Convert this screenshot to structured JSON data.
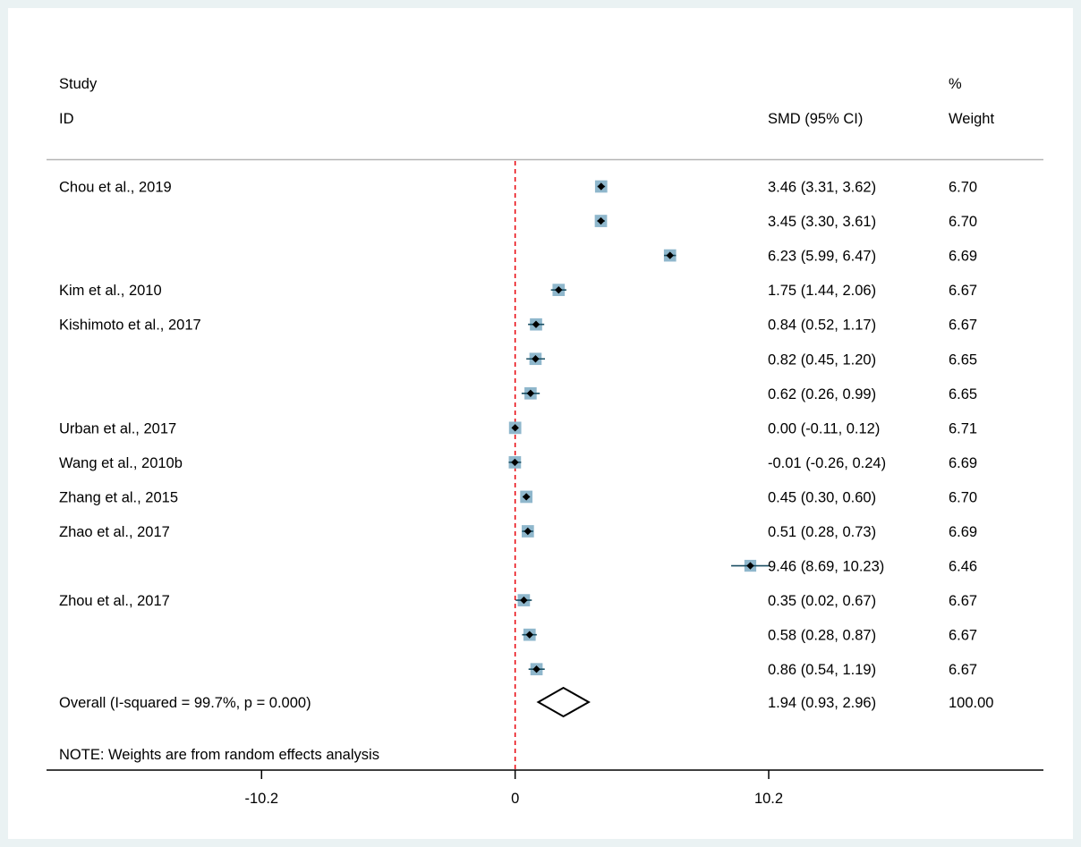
{
  "colors": {
    "outer_background": "#eaf2f3",
    "panel_background": "#ffffff",
    "null_line": "#e8000b",
    "ci_line": "#1a4f63",
    "weight_box": "#8fb7cc",
    "point": "#000000",
    "text": "#000000",
    "rule": "#b4b4b4",
    "axis": "#000000"
  },
  "headers": {
    "study_line1": "Study",
    "study_line2": "ID",
    "effect": "SMD (95% CI)",
    "weight_line1": "%",
    "weight_line2": "Weight"
  },
  "note": "NOTE: Weights are from random effects analysis",
  "chart_data": {
    "type": "forest",
    "effect_measure": "SMD",
    "null_value": 0,
    "xlim": [
      -18.85,
      21.25
    ],
    "x_ticks": [
      -10.2,
      0,
      10.2
    ],
    "x_tick_labels": [
      "-10.2",
      "0",
      "10.2"
    ],
    "grid": false,
    "legend": "none",
    "studies": [
      {
        "label": "Chou et al., 2019",
        "smd": 3.46,
        "lower": 3.31,
        "upper": 3.62,
        "weight": 6.7,
        "ci_text": "3.46 (3.31, 3.62)",
        "weight_text": "6.70"
      },
      {
        "label": "",
        "smd": 3.45,
        "lower": 3.3,
        "upper": 3.61,
        "weight": 6.7,
        "ci_text": "3.45 (3.30, 3.61)",
        "weight_text": "6.70"
      },
      {
        "label": "",
        "smd": 6.23,
        "lower": 5.99,
        "upper": 6.47,
        "weight": 6.69,
        "ci_text": "6.23 (5.99, 6.47)",
        "weight_text": "6.69"
      },
      {
        "label": "Kim et al., 2010",
        "smd": 1.75,
        "lower": 1.44,
        "upper": 2.06,
        "weight": 6.67,
        "ci_text": "1.75 (1.44, 2.06)",
        "weight_text": "6.67"
      },
      {
        "label": "Kishimoto et al., 2017",
        "smd": 0.84,
        "lower": 0.52,
        "upper": 1.17,
        "weight": 6.67,
        "ci_text": "0.84 (0.52, 1.17)",
        "weight_text": "6.67"
      },
      {
        "label": "",
        "smd": 0.82,
        "lower": 0.45,
        "upper": 1.2,
        "weight": 6.65,
        "ci_text": "0.82 (0.45, 1.20)",
        "weight_text": "6.65"
      },
      {
        "label": "",
        "smd": 0.62,
        "lower": 0.26,
        "upper": 0.99,
        "weight": 6.65,
        "ci_text": "0.62 (0.26, 0.99)",
        "weight_text": "6.65"
      },
      {
        "label": "Urban et al., 2017",
        "smd": 0.0,
        "lower": -0.11,
        "upper": 0.12,
        "weight": 6.71,
        "ci_text": "0.00 (-0.11, 0.12)",
        "weight_text": "6.71"
      },
      {
        "label": "Wang et al., 2010b",
        "smd": -0.01,
        "lower": -0.26,
        "upper": 0.24,
        "weight": 6.69,
        "ci_text": "-0.01 (-0.26, 0.24)",
        "weight_text": "6.69"
      },
      {
        "label": "Zhang et al., 2015",
        "smd": 0.45,
        "lower": 0.3,
        "upper": 0.6,
        "weight": 6.7,
        "ci_text": "0.45 (0.30, 0.60)",
        "weight_text": "6.70"
      },
      {
        "label": "Zhao et al., 2017",
        "smd": 0.51,
        "lower": 0.28,
        "upper": 0.73,
        "weight": 6.69,
        "ci_text": "0.51 (0.28, 0.73)",
        "weight_text": "6.69"
      },
      {
        "label": "",
        "smd": 9.46,
        "lower": 8.69,
        "upper": 10.23,
        "weight": 6.46,
        "ci_text": "9.46 (8.69, 10.23)",
        "weight_text": "6.46"
      },
      {
        "label": "Zhou et al., 2017",
        "smd": 0.35,
        "lower": 0.02,
        "upper": 0.67,
        "weight": 6.67,
        "ci_text": "0.35 (0.02, 0.67)",
        "weight_text": "6.67"
      },
      {
        "label": "",
        "smd": 0.58,
        "lower": 0.28,
        "upper": 0.87,
        "weight": 6.67,
        "ci_text": "0.58 (0.28, 0.87)",
        "weight_text": "6.67"
      },
      {
        "label": "",
        "smd": 0.86,
        "lower": 0.54,
        "upper": 1.19,
        "weight": 6.67,
        "ci_text": "0.86 (0.54, 1.19)",
        "weight_text": "6.67"
      }
    ],
    "overall": {
      "label": "Overall  (I-squared = 99.7%, p = 0.000)",
      "smd": 1.94,
      "lower": 0.93,
      "upper": 2.96,
      "ci_text": "1.94 (0.93, 2.96)",
      "weight_text": "100.00"
    }
  }
}
